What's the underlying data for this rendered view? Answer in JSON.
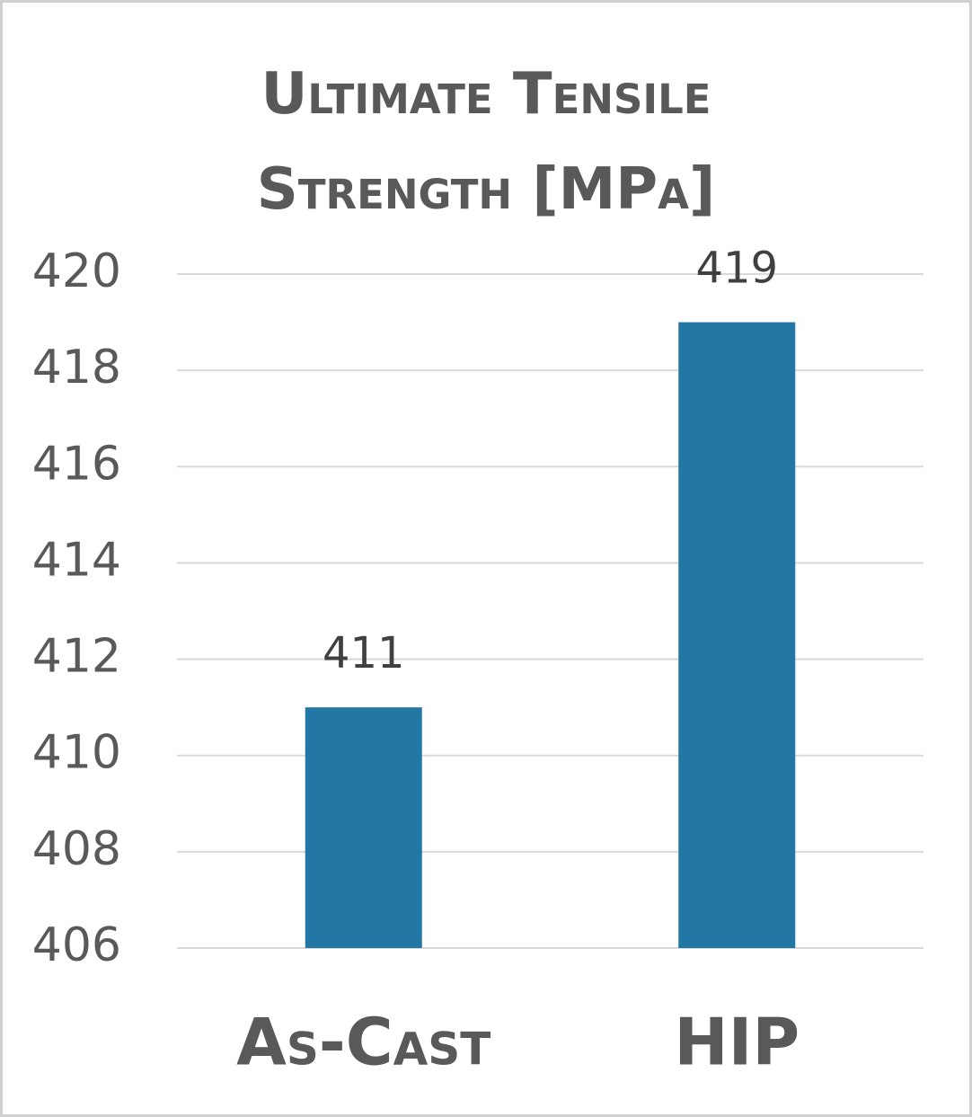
{
  "chart_data": {
    "type": "bar",
    "title": "Ultimate Tensile Strength [MPa]",
    "categories": [
      "As-Cast",
      "HIP"
    ],
    "values": [
      411,
      419
    ],
    "color": "#2277a4",
    "ylim": [
      406,
      420
    ],
    "yticks": [
      406,
      408,
      410,
      412,
      414,
      416,
      418,
      420
    ],
    "grid": true
  }
}
